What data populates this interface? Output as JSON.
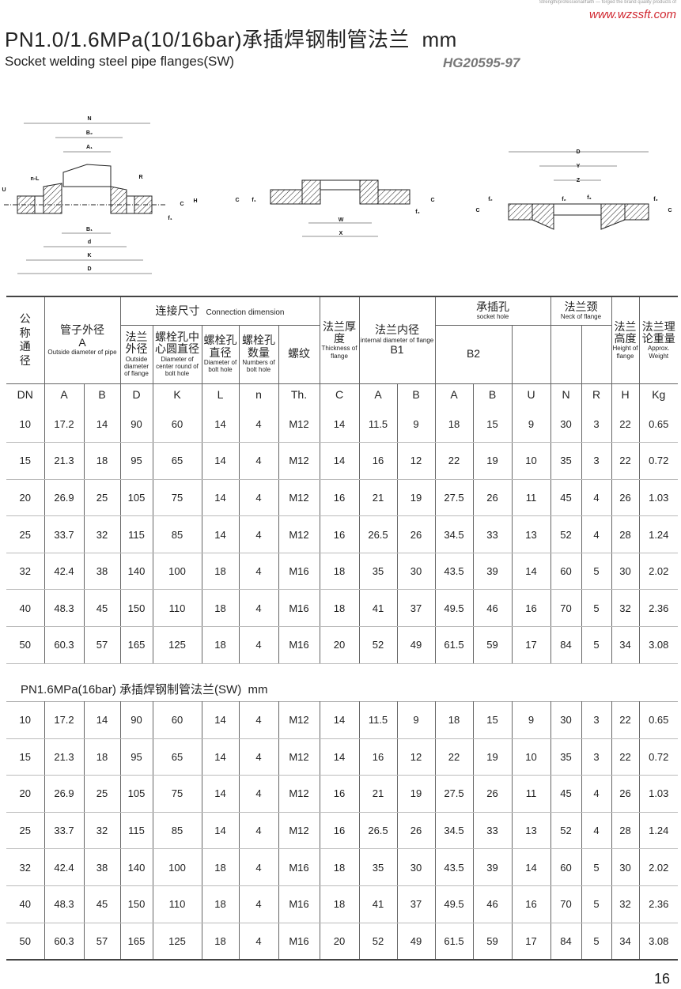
{
  "header": {
    "tagline": "Strength/professional/faith — forged the brand quality products of",
    "url": "www.wzssft.com",
    "title": "PN1.0/1.6MPa(10/16bar)承插焊钢制管法兰  mm",
    "subtitle": "Socket welding steel pipe flanges(SW)",
    "standard": "HG20595-97"
  },
  "drawings": {
    "fig1": [
      "N",
      "B₂",
      "A₁",
      "R",
      "n-L",
      "U",
      "C",
      "H",
      "f₁",
      "B₁",
      "d",
      "K",
      "D"
    ],
    "fig2": [
      "C",
      "f₁",
      "f₂",
      "C",
      "W",
      "X"
    ],
    "fig3": [
      "D",
      "Y",
      "Z",
      "C",
      "f₂",
      "f₂",
      "f₃",
      "f₂",
      "C"
    ]
  },
  "table": {
    "head": {
      "dn": "公称通径",
      "pipe": {
        "zh": "管子外径",
        "symbol": "A",
        "en": "Outside diameter of pipe"
      },
      "connection": {
        "zh": "连接尺寸",
        "en": "Connection dimension"
      },
      "connection_cols": [
        {
          "zh": "法兰外径",
          "en": "Outside diameter of flange"
        },
        {
          "zh": "螺栓孔中心圆直径",
          "en": "Diameter of center round of bolt hole"
        },
        {
          "zh": "螺栓孔直径",
          "en": "Diameter of bolt hole"
        },
        {
          "zh": "螺栓孔数量",
          "en": "Numbers of bolt hole"
        },
        {
          "zh": "螺纹"
        }
      ],
      "thickness": {
        "zh": "法兰厚度",
        "en": "Thickness of flange"
      },
      "inner": {
        "zh": "法兰内径",
        "en": "internal diameter of flange",
        "symbol": "B1"
      },
      "socket": {
        "zh": "承插孔",
        "en": "socket hole",
        "symbol": "B2"
      },
      "neck": {
        "zh": "法兰颈",
        "en": "Neck of flange"
      },
      "height": {
        "zh": "法兰高度",
        "en": "Height of flange"
      },
      "weight": {
        "zh": "法兰理论重量",
        "en": "Approx. Weight"
      }
    },
    "units": [
      "DN",
      "A",
      "B",
      "D",
      "K",
      "L",
      "n",
      "Th.",
      "C",
      "A",
      "B",
      "A",
      "B",
      "U",
      "N",
      "R",
      "H",
      "Kg"
    ],
    "rows": [
      [
        10,
        17.2,
        14,
        90,
        60,
        14,
        4,
        "M12",
        14,
        11.5,
        9,
        18,
        15,
        9,
        30,
        3,
        22,
        0.65
      ],
      [
        15,
        21.3,
        18,
        95,
        65,
        14,
        4,
        "M12",
        14,
        16,
        12,
        22,
        19,
        10,
        35,
        3,
        22,
        0.72
      ],
      [
        20,
        26.9,
        25,
        105,
        75,
        14,
        4,
        "M12",
        16,
        21,
        19,
        27.5,
        26,
        11,
        45,
        4,
        26,
        1.03
      ],
      [
        25,
        33.7,
        32,
        115,
        85,
        14,
        4,
        "M12",
        16,
        26.5,
        26,
        34.5,
        33,
        13,
        52,
        4,
        28,
        1.24
      ],
      [
        32,
        42.4,
        38,
        140,
        100,
        18,
        4,
        "M16",
        18,
        35,
        30,
        43.5,
        39,
        14,
        60,
        5,
        30,
        2.02
      ],
      [
        40,
        48.3,
        45,
        150,
        110,
        18,
        4,
        "M16",
        18,
        41,
        37,
        49.5,
        46,
        16,
        70,
        5,
        32,
        2.36
      ],
      [
        50,
        60.3,
        57,
        165,
        125,
        18,
        4,
        "M16",
        20,
        52,
        49,
        61.5,
        59,
        17,
        84,
        5,
        34,
        3.08
      ]
    ]
  },
  "table2": {
    "title": "PN1.6MPa(16bar) 承插焊钢制管法兰(SW)  mm",
    "rows": [
      [
        10,
        17.2,
        14,
        90,
        60,
        14,
        4,
        "M12",
        14,
        11.5,
        9,
        18,
        15,
        9,
        30,
        3,
        22,
        0.65
      ],
      [
        15,
        21.3,
        18,
        95,
        65,
        14,
        4,
        "M12",
        14,
        16,
        12,
        22,
        19,
        10,
        35,
        3,
        22,
        0.72
      ],
      [
        20,
        26.9,
        25,
        105,
        75,
        14,
        4,
        "M12",
        16,
        21,
        19,
        27.5,
        26,
        11,
        45,
        4,
        26,
        1.03
      ],
      [
        25,
        33.7,
        32,
        115,
        85,
        14,
        4,
        "M12",
        16,
        26.5,
        26,
        34.5,
        33,
        13,
        52,
        4,
        28,
        1.24
      ],
      [
        32,
        42.4,
        38,
        140,
        100,
        18,
        4,
        "M16",
        18,
        35,
        30,
        43.5,
        39,
        14,
        60,
        5,
        30,
        2.02
      ],
      [
        40,
        48.3,
        45,
        150,
        110,
        18,
        4,
        "M16",
        18,
        41,
        37,
        49.5,
        46,
        16,
        70,
        5,
        32,
        2.36
      ],
      [
        50,
        60.3,
        57,
        165,
        125,
        18,
        4,
        "M16",
        20,
        52,
        49,
        61.5,
        59,
        17,
        84,
        5,
        34,
        3.08
      ]
    ]
  },
  "page_number": 16
}
